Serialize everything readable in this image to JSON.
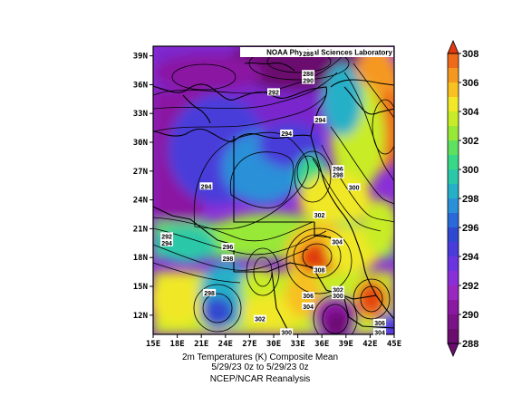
{
  "banner": "NOAA Physical Sciences Laboratory",
  "caption": {
    "line1": "2m Temperatures (K)   Composite Mean",
    "line2": "5/29/23 0z  to 5/29/23 0z",
    "line3": "NCEP/NCAR Reanalysis"
  },
  "chart_data": {
    "type": "heatmap",
    "variable_units": "K",
    "x_ticks": [
      "15E",
      "18E",
      "21E",
      "24E",
      "27E",
      "30E",
      "33E",
      "36E",
      "39E",
      "42E",
      "45E"
    ],
    "y_ticks": [
      "12N",
      "15N",
      "18N",
      "21N",
      "24N",
      "27N",
      "30N",
      "33N",
      "36N",
      "39N"
    ],
    "xlim": [
      15,
      45
    ],
    "ylim": [
      10,
      40
    ],
    "colorbar": {
      "levels": [
        288,
        289,
        290,
        291,
        292,
        293,
        294,
        295,
        296,
        297,
        298,
        299,
        300,
        301,
        302,
        303,
        304,
        305,
        306,
        307,
        308
      ],
      "labels": [
        "288",
        "290",
        "292",
        "294",
        "296",
        "298",
        "300",
        "302",
        "304",
        "306",
        "308"
      ],
      "colors": [
        "#6a0d6e",
        "#7a1288",
        "#8b18a2",
        "#9a28c0",
        "#8a2fd8",
        "#6a35e0",
        "#4a3cda",
        "#3048d0",
        "#2a6ad8",
        "#2a90d8",
        "#25b0c8",
        "#2ac8a8",
        "#38d888",
        "#60e060",
        "#98e838",
        "#c8ec28",
        "#f0e828",
        "#f8c020",
        "#f59820",
        "#ee6a1a",
        "#e03a10"
      ]
    },
    "contour_labels": [
      {
        "text": "288",
        "lon": 34.3,
        "lat": 39.2
      },
      {
        "text": "288",
        "lon": 34.3,
        "lat": 37.1
      },
      {
        "text": "290",
        "lon": 34.3,
        "lat": 36.4
      },
      {
        "text": "292",
        "lon": 30.0,
        "lat": 35.2
      },
      {
        "text": "294",
        "lon": 35.8,
        "lat": 32.3
      },
      {
        "text": "294",
        "lon": 31.6,
        "lat": 30.9
      },
      {
        "text": "294",
        "lon": 21.6,
        "lat": 25.4
      },
      {
        "text": "296",
        "lon": 38.0,
        "lat": 27.2
      },
      {
        "text": "298",
        "lon": 38.0,
        "lat": 26.6
      },
      {
        "text": "300",
        "lon": 40.0,
        "lat": 25.3
      },
      {
        "text": "302",
        "lon": 35.7,
        "lat": 22.4
      },
      {
        "text": "292",
        "lon": 16.7,
        "lat": 20.2
      },
      {
        "text": "294",
        "lon": 16.7,
        "lat": 19.5
      },
      {
        "text": "296",
        "lon": 24.3,
        "lat": 19.1
      },
      {
        "text": "298",
        "lon": 24.3,
        "lat": 17.9
      },
      {
        "text": "304",
        "lon": 37.9,
        "lat": 19.6
      },
      {
        "text": "308",
        "lon": 35.7,
        "lat": 16.7
      },
      {
        "text": "298",
        "lon": 22.0,
        "lat": 14.3
      },
      {
        "text": "302",
        "lon": 38.0,
        "lat": 14.6
      },
      {
        "text": "300",
        "lon": 38.0,
        "lat": 14.0
      },
      {
        "text": "306",
        "lon": 34.3,
        "lat": 14.0
      },
      {
        "text": "304",
        "lon": 34.3,
        "lat": 12.9
      },
      {
        "text": "302",
        "lon": 28.3,
        "lat": 11.6
      },
      {
        "text": "300",
        "lon": 31.6,
        "lat": 10.2
      },
      {
        "text": "306",
        "lon": 43.2,
        "lat": 11.2
      },
      {
        "text": "304",
        "lon": 43.2,
        "lat": 10.2
      }
    ]
  }
}
